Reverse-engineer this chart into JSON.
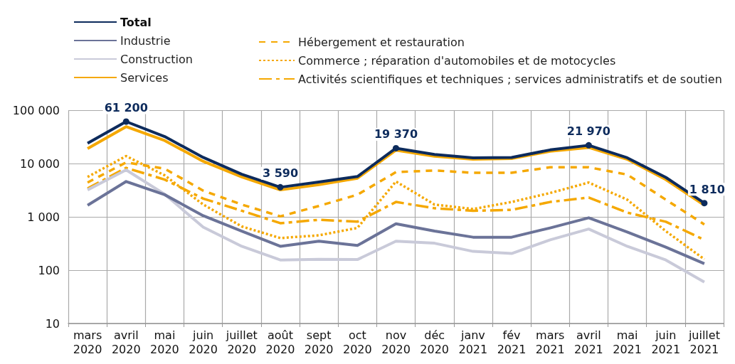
{
  "chart_data": {
    "type": "line",
    "categories": [
      "mars 2020",
      "avril 2020",
      "mai 2020",
      "juin 2020",
      "juillet 2020",
      "août 2020",
      "sept 2020",
      "oct 2020",
      "nov 2020",
      "déc 2020",
      "janv 2021",
      "fév 2021",
      "mars 2021",
      "avril 2021",
      "mai 2021",
      "juin 2021",
      "juillet 2021"
    ],
    "series": [
      {
        "name": "Total",
        "color": "#0d2b5c",
        "line_style": "solid",
        "values": [
          24000,
          61200,
          32000,
          13000,
          6300,
          3590,
          4500,
          5700,
          19370,
          14800,
          12800,
          13000,
          18000,
          21970,
          12800,
          5500,
          1810
        ],
        "value_labels": [
          null,
          "61 200",
          null,
          null,
          null,
          "3 590",
          null,
          null,
          "19 370",
          null,
          null,
          null,
          null,
          "21 970",
          null,
          null,
          "1 810"
        ]
      },
      {
        "name": "Industrie",
        "color": "#6b7398",
        "line_style": "solid",
        "values": [
          1650,
          4600,
          2600,
          1050,
          540,
          280,
          350,
          290,
          740,
          540,
          415,
          415,
          620,
          960,
          520,
          270,
          132
        ]
      },
      {
        "name": "Construction",
        "color": "#c9cad9",
        "line_style": "solid",
        "values": [
          3200,
          7600,
          2650,
          640,
          280,
          155,
          160,
          158,
          350,
          320,
          225,
          205,
          370,
          590,
          280,
          155,
          60
        ]
      },
      {
        "name": "Services",
        "color": "#f5a800",
        "line_style": "solid",
        "values": [
          19000,
          49000,
          27000,
          11000,
          5600,
          3200,
          4000,
          5300,
          17800,
          13700,
          12000,
          12400,
          17000,
          20000,
          12000,
          5000,
          1650
        ]
      },
      {
        "name": "Hébergement et restauration",
        "color": "#f5a800",
        "line_style": "dashed",
        "values": [
          4400,
          10500,
          8000,
          3100,
          1700,
          1020,
          1600,
          2600,
          6900,
          7400,
          6700,
          6700,
          8500,
          8500,
          6200,
          2100,
          720
        ]
      },
      {
        "name": "Commerce ; réparation d'automobiles et de motocycles",
        "color": "#f5a800",
        "line_style": "dotted",
        "values": [
          5600,
          13800,
          6000,
          1700,
          660,
          400,
          450,
          620,
          4600,
          1700,
          1400,
          1900,
          2800,
          4400,
          2100,
          540,
          160
        ]
      },
      {
        "name": "Activités scientifiques et techniques ; services administratifs et de soutien",
        "color": "#f5a800",
        "line_style": "dashdot",
        "values": [
          3400,
          8300,
          5000,
          2200,
          1300,
          760,
          880,
          810,
          1900,
          1450,
          1300,
          1350,
          1900,
          2300,
          1200,
          810,
          370
        ]
      }
    ],
    "log": "y",
    "ylim": [
      10,
      100000
    ],
    "yticks": [
      {
        "value": 10,
        "label": "10"
      },
      {
        "value": 100,
        "label": "100"
      },
      {
        "value": 1000,
        "label": "1 000"
      },
      {
        "value": 10000,
        "label": "10 000"
      },
      {
        "value": 100000,
        "label": "100 000"
      }
    ],
    "grid": true,
    "legend": "top left"
  }
}
